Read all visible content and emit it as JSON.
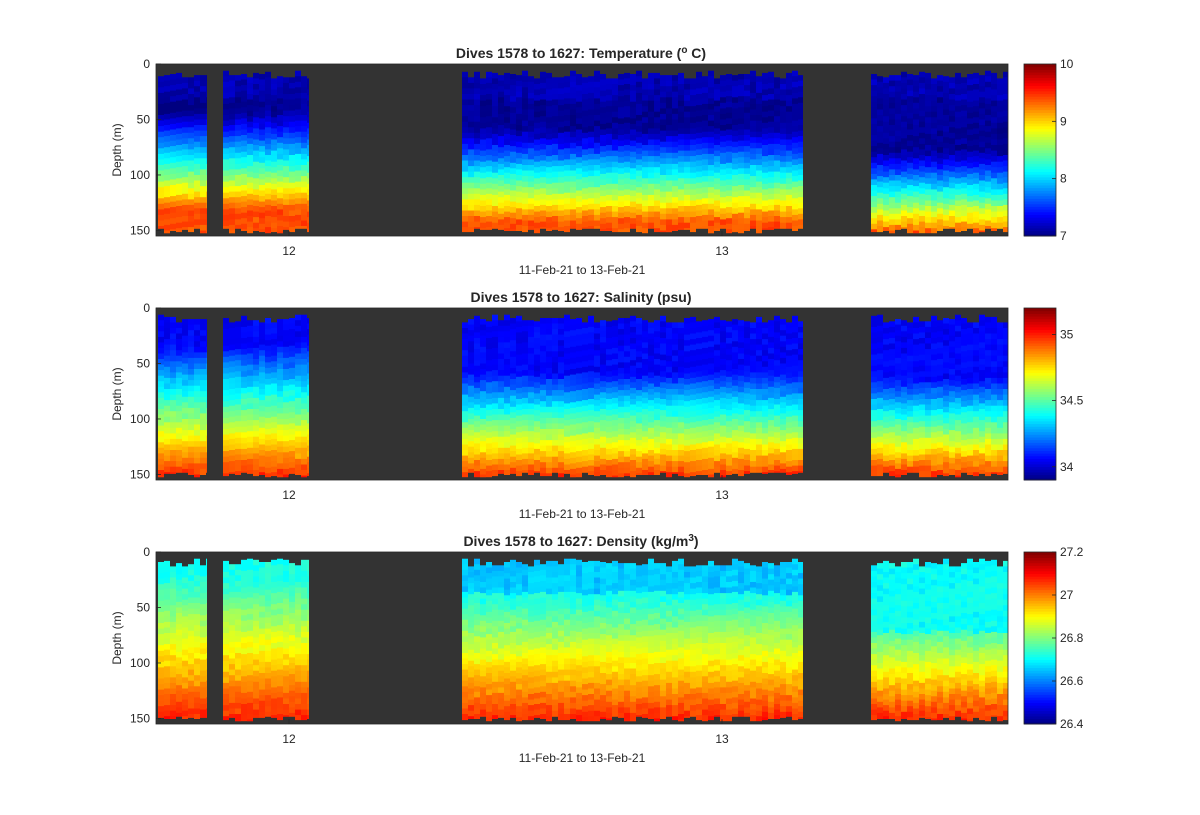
{
  "chart_data": [
    {
      "type": "heatmap",
      "variable": "temperature",
      "title_prefix": "Dives 1578 to 1627: Temperature (",
      "title_sup": "o",
      "title_suffix": " C)",
      "ylabel": "Depth (m)",
      "xlabel": "11-Feb-21 to 13-Feb-21",
      "ylim": [
        0,
        155
      ],
      "yticks": [
        0,
        50,
        100,
        150
      ],
      "xticks": [
        "12",
        "13"
      ],
      "clim": [
        7,
        10
      ],
      "cticks": [
        7,
        8,
        9,
        10
      ],
      "colormap": "jet",
      "missing_color": "#333333"
    },
    {
      "type": "heatmap",
      "variable": "salinity",
      "title_prefix": "Dives 1578 to 1627: Salinity (psu)",
      "title_sup": "",
      "title_suffix": "",
      "ylabel": "Depth (m)",
      "xlabel": "11-Feb-21 to 13-Feb-21",
      "ylim": [
        0,
        155
      ],
      "yticks": [
        0,
        50,
        100,
        150
      ],
      "xticks": [
        "12",
        "13"
      ],
      "clim": [
        33.9,
        35.2
      ],
      "cticks": [
        34,
        34.5,
        35
      ],
      "colormap": "jet",
      "missing_color": "#333333"
    },
    {
      "type": "heatmap",
      "variable": "density",
      "title_prefix": "Dives 1578 to 1627: Density (kg/m",
      "title_sup": "3",
      "title_suffix": ")",
      "ylabel": "Depth (m)",
      "xlabel": "11-Feb-21 to 13-Feb-21",
      "ylim": [
        0,
        155
      ],
      "yticks": [
        0,
        50,
        100,
        150
      ],
      "xticks": [
        "12",
        "13"
      ],
      "clim": [
        26.4,
        27.2
      ],
      "cticks": [
        26.4,
        26.6,
        26.8,
        27,
        27.2
      ],
      "colormap": "jet",
      "missing_color": "#333333"
    }
  ]
}
